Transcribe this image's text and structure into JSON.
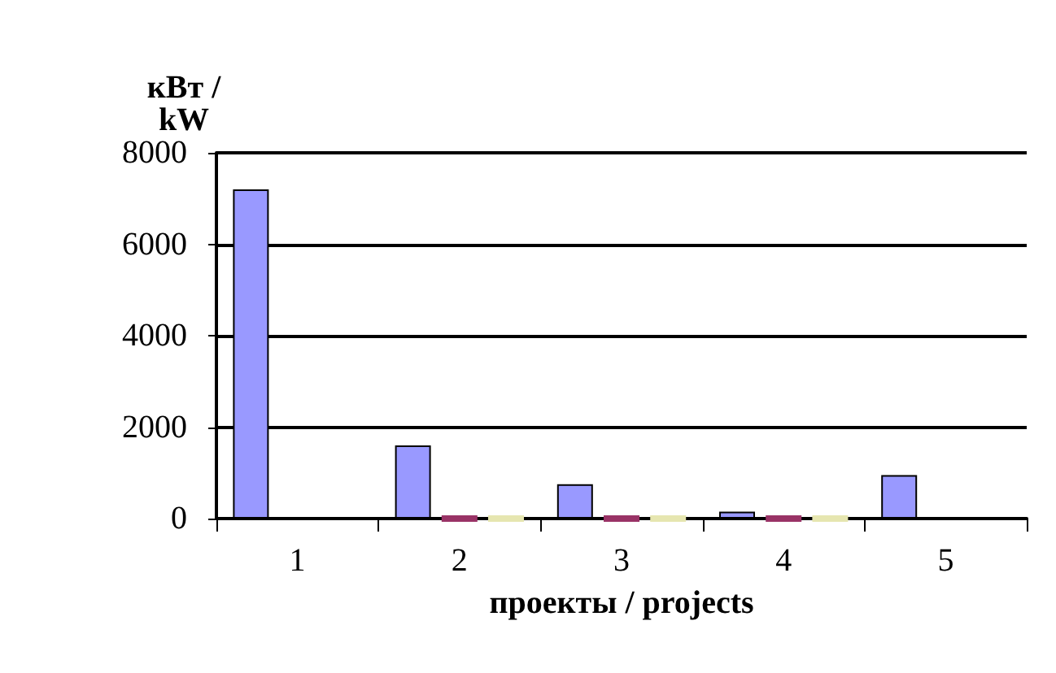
{
  "chart_data": {
    "type": "bar",
    "ylabel": "кВт /\nkW",
    "xlabel": "проекты / projects",
    "categories": [
      "1",
      "2",
      "3",
      "4",
      "5"
    ],
    "series": [
      {
        "color": "#9999ff",
        "values": [
          7200,
          1600,
          750,
          150,
          950
        ]
      },
      {
        "color": "#993366",
        "values": [
          null,
          0,
          0,
          0,
          null
        ]
      },
      {
        "color": "#e6e6b0",
        "values": [
          null,
          0,
          0,
          0,
          null
        ]
      }
    ],
    "ylim": [
      0,
      8000
    ],
    "yticks": [
      0,
      2000,
      4000,
      6000,
      8000
    ],
    "grid": "y"
  }
}
